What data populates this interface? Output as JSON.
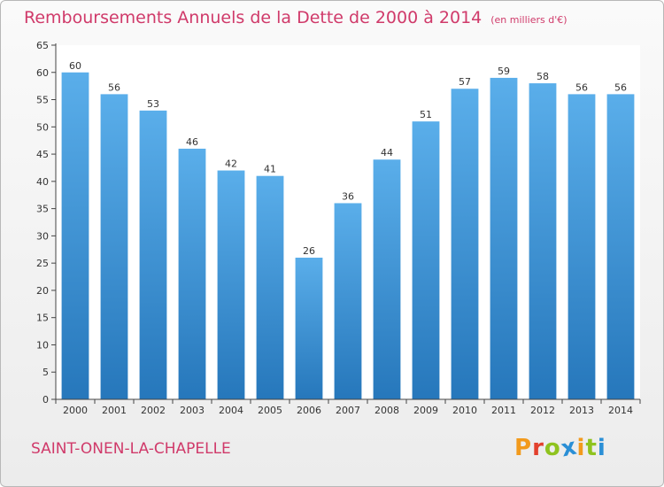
{
  "chart_data": {
    "type": "bar",
    "title": "Remboursements Annuels de la Dette de 2000 à 2014",
    "subtitle": "(en milliers d'€)",
    "categories": [
      "2000",
      "2001",
      "2002",
      "2003",
      "2004",
      "2005",
      "2006",
      "2007",
      "2008",
      "2009",
      "2010",
      "2011",
      "2012",
      "2013",
      "2014"
    ],
    "values": [
      60,
      56,
      53,
      46,
      42,
      41,
      26,
      36,
      44,
      51,
      57,
      59,
      58,
      56,
      56
    ],
    "ylim": [
      0,
      65
    ],
    "yticks": [
      0,
      5,
      10,
      15,
      20,
      25,
      30,
      35,
      40,
      45,
      50,
      55,
      60,
      65
    ],
    "xlabel": "",
    "ylabel": "",
    "grid": false,
    "bar_color": "#3a8fd6"
  },
  "footer": {
    "commune": "SAINT-ONEN-LA-CHAPELLE",
    "brand": "Proxiti"
  },
  "colors": {
    "title": "#d03a6a",
    "brand_letters": [
      "#f29a1c",
      "#e2412d",
      "#8fc31f",
      "#2a8fd6",
      "#f29a1c",
      "#8fc31f",
      "#2a8fd6"
    ]
  }
}
